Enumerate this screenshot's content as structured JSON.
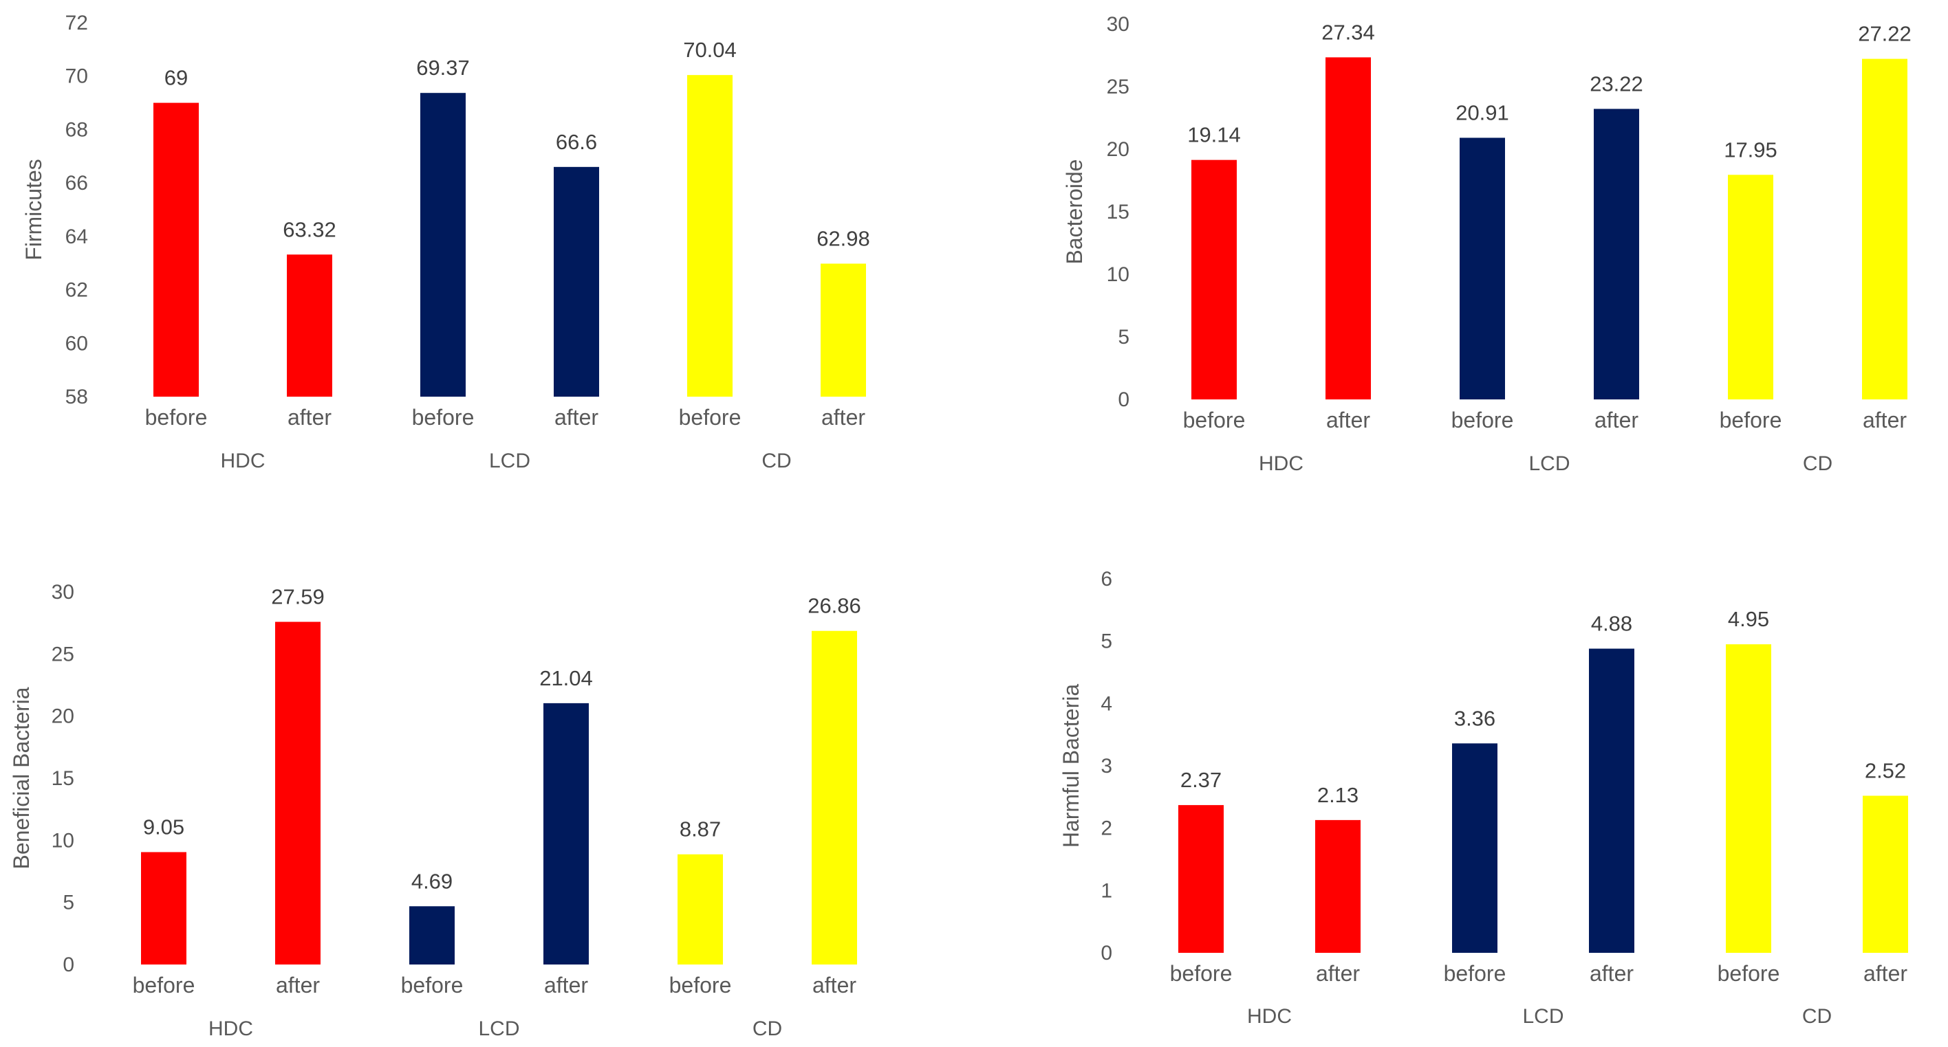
{
  "colors": {
    "HDC": "#ff0000",
    "LCD": "#001a5c",
    "CD": "#ffff00"
  },
  "chart_data": [
    {
      "type": "bar",
      "title": "",
      "ylabel": "Firmicutes",
      "ylim": [
        58,
        72
      ],
      "yticks": [
        58,
        60,
        62,
        64,
        66,
        68,
        70,
        72
      ],
      "categories": [
        "before",
        "after",
        "before",
        "after",
        "before",
        "after"
      ],
      "groups": [
        "HDC",
        "LCD",
        "CD"
      ],
      "values": [
        69,
        63.32,
        69.37,
        66.6,
        70.04,
        62.98
      ],
      "labels": [
        "69",
        "63.32",
        "69.37",
        "66.6",
        "70.04",
        "62.98"
      ],
      "group_of": [
        "HDC",
        "HDC",
        "LCD",
        "LCD",
        "CD",
        "CD"
      ]
    },
    {
      "type": "bar",
      "title": "",
      "ylabel": "Bacteroide",
      "ylim": [
        0,
        30
      ],
      "yticks": [
        0,
        5,
        10,
        15,
        20,
        25,
        30
      ],
      "categories": [
        "before",
        "after",
        "before",
        "after",
        "before",
        "after"
      ],
      "groups": [
        "HDC",
        "LCD",
        "CD"
      ],
      "values": [
        19.14,
        27.34,
        20.91,
        23.22,
        17.95,
        27.22
      ],
      "labels": [
        "19.14",
        "27.34",
        "20.91",
        "23.22",
        "17.95",
        "27.22"
      ],
      "group_of": [
        "HDC",
        "HDC",
        "LCD",
        "LCD",
        "CD",
        "CD"
      ]
    },
    {
      "type": "bar",
      "title": "",
      "ylabel": "Beneficial Bacteria",
      "ylim": [
        0,
        30
      ],
      "yticks": [
        0,
        5,
        10,
        15,
        20,
        25,
        30
      ],
      "categories": [
        "before",
        "after",
        "before",
        "after",
        "before",
        "after"
      ],
      "groups": [
        "HDC",
        "LCD",
        "CD"
      ],
      "values": [
        9.05,
        27.59,
        4.69,
        21.04,
        8.87,
        26.86
      ],
      "labels": [
        "9.05",
        "27.59",
        "4.69",
        "21.04",
        "8.87",
        "26.86"
      ],
      "group_of": [
        "HDC",
        "HDC",
        "LCD",
        "LCD",
        "CD",
        "CD"
      ]
    },
    {
      "type": "bar",
      "title": "",
      "ylabel": "Harmful Bacteria",
      "ylim": [
        0,
        6
      ],
      "yticks": [
        0,
        1,
        2,
        3,
        4,
        5,
        6
      ],
      "categories": [
        "before",
        "after",
        "before",
        "after",
        "before",
        "after"
      ],
      "groups": [
        "HDC",
        "LCD",
        "CD"
      ],
      "values": [
        2.37,
        2.13,
        3.36,
        4.88,
        4.95,
        2.52
      ],
      "labels": [
        "2.37",
        "2.13",
        "3.36",
        "4.88",
        "4.95",
        "2.52"
      ],
      "group_of": [
        "HDC",
        "HDC",
        "LCD",
        "LCD",
        "CD",
        "CD"
      ]
    }
  ]
}
